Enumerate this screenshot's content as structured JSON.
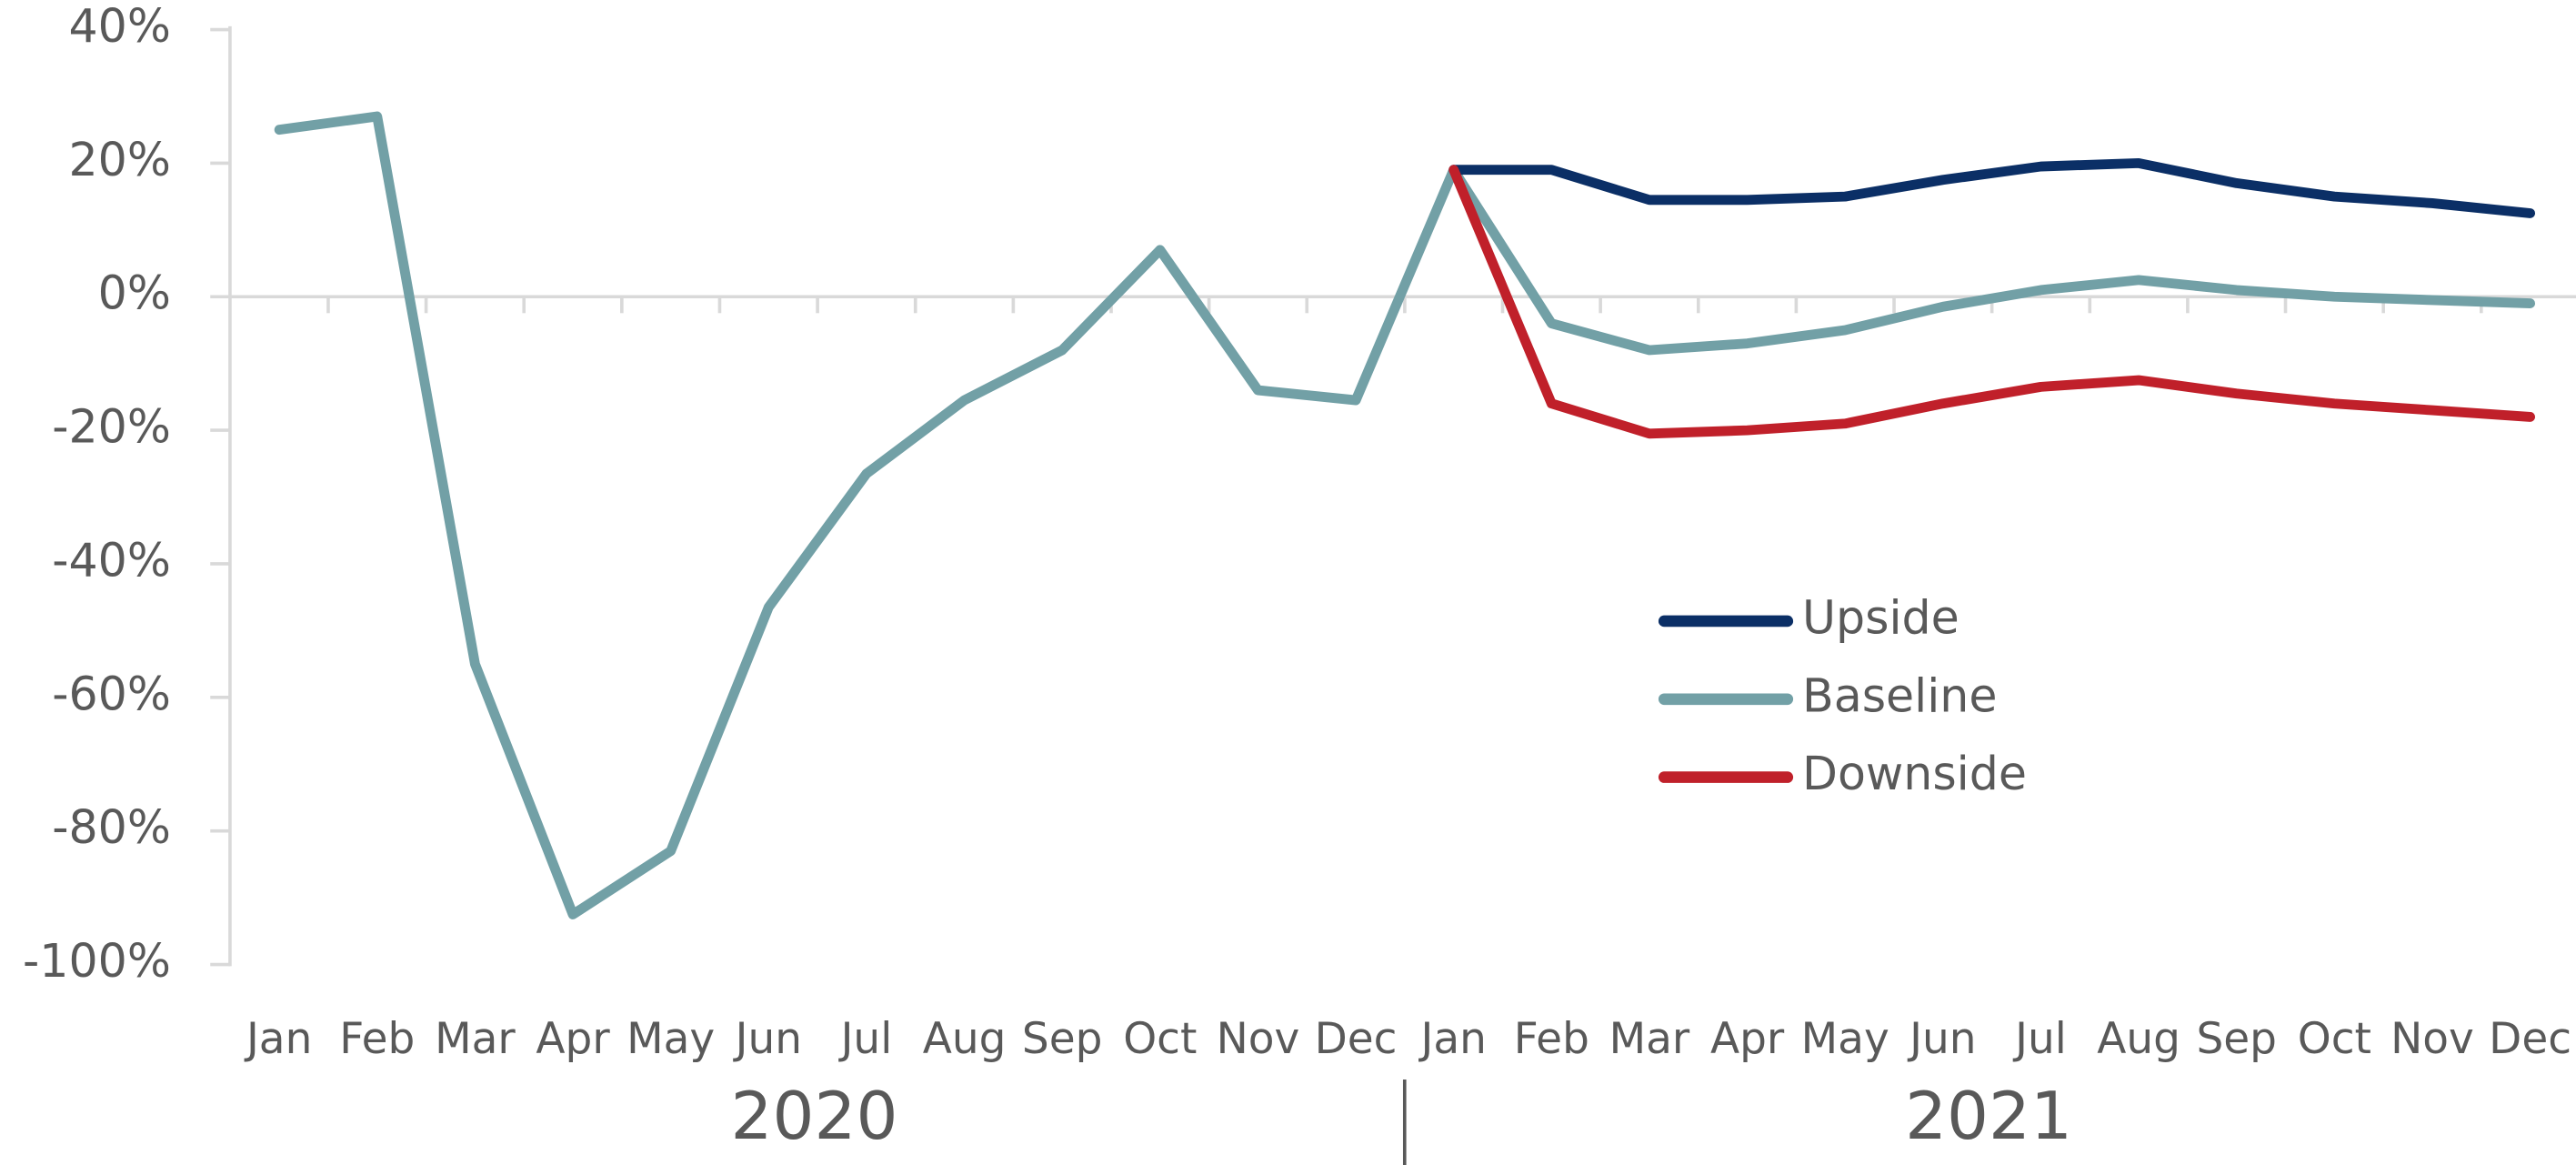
{
  "chart_data": {
    "type": "line",
    "categories": [
      "Jan",
      "Feb",
      "Mar",
      "Apr",
      "May",
      "Jun",
      "Jul",
      "Aug",
      "Sep",
      "Oct",
      "Nov",
      "Dec",
      "Jan",
      "Feb",
      "Mar",
      "Apr",
      "May",
      "Jun",
      "Jul",
      "Aug",
      "Sep",
      "Oct",
      "Nov",
      "Dec"
    ],
    "year_groups": [
      "2020",
      "2021"
    ],
    "series": [
      {
        "name": "Upside",
        "color": "#0b2f66",
        "values": [
          null,
          null,
          null,
          null,
          null,
          null,
          null,
          null,
          null,
          null,
          null,
          null,
          19,
          19,
          14.5,
          14.5,
          15,
          17.5,
          19.5,
          20,
          17,
          15,
          14,
          12.5
        ]
      },
      {
        "name": "Baseline",
        "color": "#72a0a6",
        "values": [
          25,
          27,
          -55,
          -92.5,
          -83,
          -46.5,
          -26.5,
          -15.5,
          -8,
          7,
          -14,
          -15.5,
          19,
          -4,
          -8,
          -7,
          -5,
          -1.5,
          1,
          2.5,
          1,
          0,
          -0.5,
          -1
        ]
      },
      {
        "name": "Downside",
        "color": "#c0202a",
        "values": [
          null,
          null,
          null,
          null,
          null,
          null,
          null,
          null,
          null,
          null,
          null,
          null,
          19,
          -16,
          -20.5,
          -20,
          -19,
          -16,
          -13.5,
          -12.5,
          -14.5,
          -16,
          -17,
          -18
        ]
      }
    ],
    "ylim": [
      -100,
      40
    ],
    "yticks": [
      {
        "value": 40,
        "label": "40%"
      },
      {
        "value": 20,
        "label": "20%"
      },
      {
        "value": 0,
        "label": "0%"
      },
      {
        "value": -20,
        "label": "-20%"
      },
      {
        "value": -40,
        "label": "-40%"
      },
      {
        "value": -60,
        "label": "-60%"
      },
      {
        "value": -80,
        "label": "-80%"
      },
      {
        "value": -100,
        "label": "-100%"
      }
    ],
    "legend": "center-right"
  }
}
